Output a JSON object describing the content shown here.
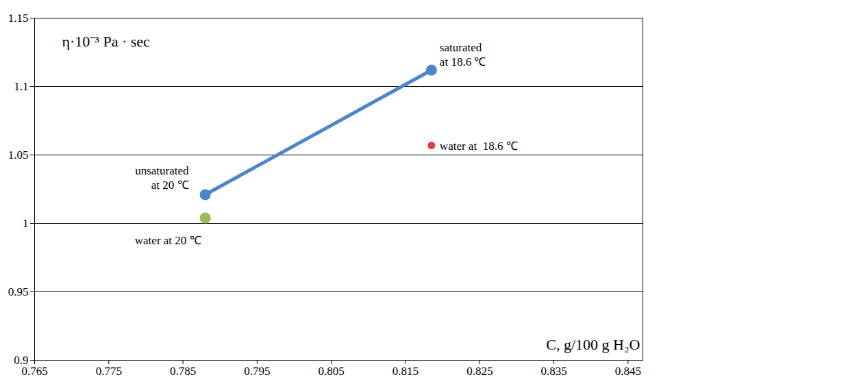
{
  "chart_data": {
    "type": "scatter",
    "y_label": "η·10⁻³ Pa · sec",
    "x_label": "C, g/100 g H₂O",
    "xlim": [
      0.765,
      0.847
    ],
    "xticks": [
      0.765,
      0.775,
      0.785,
      0.795,
      0.805,
      0.815,
      0.825,
      0.835,
      0.845
    ],
    "ylim": [
      0.9,
      1.15
    ],
    "yticks": [
      0.9,
      0.95,
      1,
      1.05,
      1.1,
      1.15
    ],
    "grid": true,
    "series": [
      {
        "type": "line",
        "color": "#4a86c8",
        "marker": "circle",
        "x": [
          0.788,
          0.8185
        ],
        "values": [
          1.021,
          1.112
        ],
        "point_labels": [
          "unsaturated\nat 20 ℃",
          "saturated\nat 18.6 ℃"
        ]
      },
      {
        "type": "scatter",
        "color": "#9bbb59",
        "marker": "circle",
        "x": [
          0.788
        ],
        "values": [
          1.004
        ],
        "point_labels": [
          "water at 20 ℃"
        ]
      },
      {
        "type": "scatter",
        "color": "#e0403f",
        "marker": "circle",
        "x": [
          0.8185
        ],
        "values": [
          1.057
        ],
        "point_labels": [
          "water at  18.6 ℃"
        ]
      }
    ]
  }
}
